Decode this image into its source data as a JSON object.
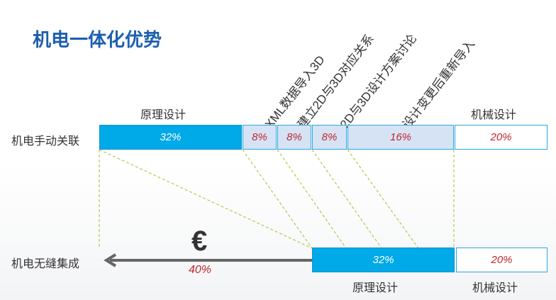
{
  "title": "机电一体化优势",
  "rows": {
    "manual": {
      "label": "机电手动关联",
      "segments": [
        {
          "value": "32%"
        },
        {
          "value": "8%"
        },
        {
          "value": "8%"
        },
        {
          "value": "8%"
        },
        {
          "value": "16%"
        },
        {
          "value": "20%"
        }
      ],
      "top_labels": {
        "principle": "原理设计",
        "mechanical": "机械设计"
      }
    },
    "integrated": {
      "label": "机电无缝集成",
      "segments": [
        {
          "value": "32%"
        },
        {
          "value": "20%"
        }
      ],
      "bottom_labels": {
        "principle": "原理设计",
        "mechanical": "机械设计"
      },
      "saving_symbol": "€",
      "saving_value": "40%"
    }
  },
  "steps": [
    "XML数据导入3D",
    "建立2D与3D对应关系",
    "2D与3D设计方案讨论",
    "设计变更后重新导入"
  ],
  "colors": {
    "title": "#1d5fae",
    "principle": "#00a9e8",
    "step": "#d6e3f5",
    "percent_text": "#c0282d",
    "guide_line": "#b5c94a",
    "arrow": "#666666"
  }
}
